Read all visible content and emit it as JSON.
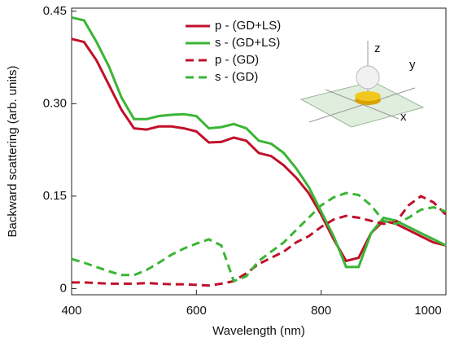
{
  "chart_data": {
    "type": "line",
    "x_label": "Wavelength (nm)",
    "y_label": "Backward scattering (arb. units)",
    "x": [
      400,
      420,
      440,
      460,
      480,
      500,
      520,
      540,
      560,
      580,
      600,
      620,
      640,
      660,
      680,
      700,
      720,
      740,
      760,
      780,
      800,
      820,
      840,
      860,
      880,
      900,
      920,
      940,
      960,
      980,
      1000
    ],
    "series": [
      {
        "name": "p - (GD+LS)",
        "color": "#c0102a",
        "dash": false,
        "values": [
          0.405,
          0.4,
          0.37,
          0.33,
          0.29,
          0.26,
          0.258,
          0.263,
          0.263,
          0.26,
          0.255,
          0.237,
          0.238,
          0.245,
          0.24,
          0.22,
          0.215,
          0.2,
          0.18,
          0.155,
          0.12,
          0.08,
          0.045,
          0.05,
          0.09,
          0.11,
          0.105,
          0.095,
          0.085,
          0.075,
          0.07
        ]
      },
      {
        "name": "s  - (GD+LS)",
        "color": "#3ab534",
        "dash": false,
        "values": [
          0.44,
          0.435,
          0.4,
          0.36,
          0.31,
          0.275,
          0.275,
          0.28,
          0.282,
          0.283,
          0.28,
          0.26,
          0.262,
          0.267,
          0.26,
          0.24,
          0.235,
          0.22,
          0.195,
          0.165,
          0.125,
          0.085,
          0.035,
          0.035,
          0.09,
          0.115,
          0.11,
          0.1,
          0.09,
          0.08,
          0.07
        ]
      },
      {
        "name": "p - (GD)",
        "color": "#c0102a",
        "dash": true,
        "values": [
          0.01,
          0.01,
          0.009,
          0.008,
          0.008,
          0.008,
          0.009,
          0.008,
          0.007,
          0.007,
          0.006,
          0.005,
          0.008,
          0.012,
          0.025,
          0.04,
          0.05,
          0.06,
          0.075,
          0.085,
          0.1,
          0.112,
          0.118,
          0.115,
          0.11,
          0.105,
          0.108,
          0.135,
          0.15,
          0.14,
          0.12
        ]
      },
      {
        "name": "s  - (GD)",
        "color": "#3ab534",
        "dash": true,
        "values": [
          0.048,
          0.042,
          0.035,
          0.028,
          0.022,
          0.022,
          0.03,
          0.042,
          0.055,
          0.065,
          0.073,
          0.08,
          0.07,
          0.012,
          0.02,
          0.045,
          0.06,
          0.075,
          0.095,
          0.115,
          0.135,
          0.148,
          0.155,
          0.152,
          0.135,
          0.11,
          0.105,
          0.115,
          0.128,
          0.132,
          0.125
        ]
      }
    ],
    "xlim": [
      400,
      1000
    ],
    "xticks": [
      400,
      600,
      800,
      1000
    ],
    "ylim": [
      -0.01,
      0.455
    ],
    "yticks": [
      0,
      0.15,
      {
        "value": 0.3,
        "label": "0.30"
      },
      0.45
    ],
    "legend": "top-center",
    "annotations": [
      "z",
      "y",
      "x"
    ]
  }
}
